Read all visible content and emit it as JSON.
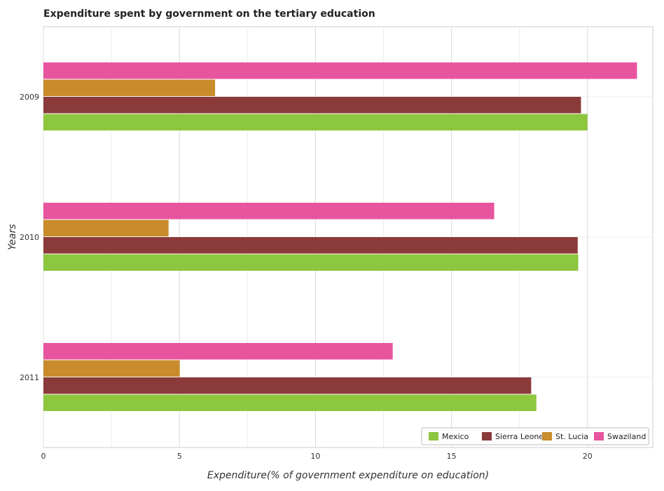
{
  "chart_data": {
    "type": "bar",
    "orientation": "horizontal",
    "title": "Expenditure spent by government on the tertiary education",
    "xlabel": "Expenditure(% of government expenditure on education)",
    "ylabel": "Years",
    "categories": [
      "2009",
      "2010",
      "2011"
    ],
    "xlim": [
      0,
      22.4
    ],
    "xticks": [
      0,
      5,
      10,
      15,
      20
    ],
    "grid": true,
    "legend_position": "bottom-right",
    "series": [
      {
        "name": "Mexico",
        "color": "#8dc63f",
        "values": [
          20.0,
          19.66,
          18.12
        ]
      },
      {
        "name": "Sierra Leone",
        "color": "#8b3a3a",
        "values": [
          19.76,
          19.64,
          17.93
        ]
      },
      {
        "name": "St. Lucia",
        "color": "#c98b2b",
        "values": [
          6.31,
          4.6,
          5.01
        ]
      },
      {
        "name": "Swaziland",
        "color": "#e8559f",
        "values": [
          21.82,
          16.57,
          12.84
        ]
      }
    ]
  }
}
